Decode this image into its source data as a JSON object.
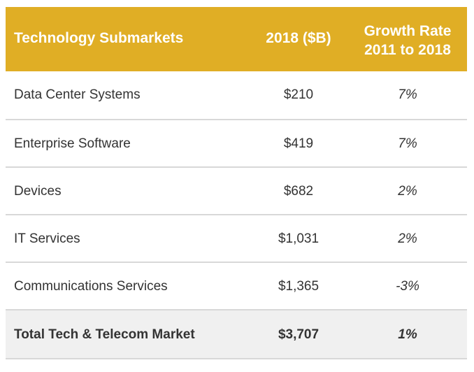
{
  "table": {
    "headers": {
      "name": "Technology Submarkets",
      "value": "2018 ($B)",
      "growth_line1": "Growth Rate",
      "growth_line2": "2011 to 2018"
    },
    "rows": [
      {
        "name": "Data Center Systems",
        "value": "$210",
        "growth": "7%"
      },
      {
        "name": "Enterprise Software",
        "value": "$419",
        "growth": "7%"
      },
      {
        "name": "Devices",
        "value": "$682",
        "growth": "2%"
      },
      {
        "name": "IT Services",
        "value": "$1,031",
        "growth": "2%"
      },
      {
        "name": "Communications Services",
        "value": "$1,365",
        "growth": "-3%"
      }
    ],
    "total": {
      "name": "Total Tech & Telecom Market",
      "value": "$3,707",
      "growth": "1%"
    }
  },
  "colors": {
    "header_bg": "#e0ae25",
    "header_text": "#ffffff",
    "row_text": "#333333",
    "divider": "#d8d8d8",
    "total_bg": "#f0f0f0"
  }
}
